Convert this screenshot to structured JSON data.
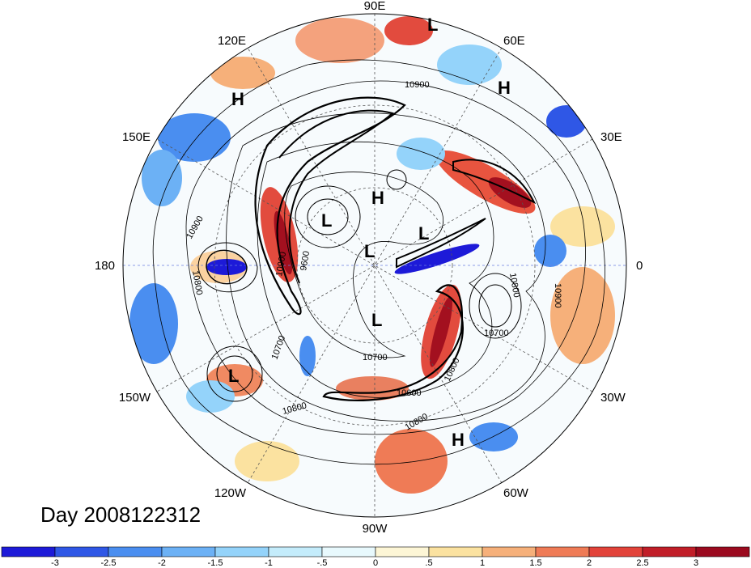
{
  "title": "Day 2008122312",
  "longitude_labels": {
    "lon_90e": "90E",
    "lon_60e": "60E",
    "lon_30e": "30E",
    "lon_0": "0",
    "lon_30w": "30W",
    "lon_60w": "60W",
    "lon_90w": "90W",
    "lon_120w": "120W",
    "lon_150w": "150W",
    "lon_180": "180",
    "lon_150e": "150E",
    "lon_120e": "120E"
  },
  "pressure_centers": {
    "c1": "L",
    "c2": "H",
    "c3": "H",
    "c4": "H",
    "c5": "L",
    "c6": "L",
    "c7": "L",
    "c8": "L",
    "c9": "L",
    "c10": "H"
  },
  "contour_labels": {
    "k1": "10900",
    "k2": "10900",
    "k3": "10800",
    "k4": "10700",
    "k5": "10800",
    "k6": "10700",
    "k7": "10600",
    "k8": "10800",
    "k9": "10800",
    "k10": "10900",
    "k11": "10700",
    "k12": "10900",
    "k13": "9600",
    "k14": "10800"
  },
  "colorbar": {
    "ticks": [
      "-3",
      "-2.5",
      "-2",
      "-1.5",
      "-1",
      "-.5",
      "0",
      ".5",
      "1",
      "1.5",
      "2",
      "2.5",
      "3"
    ],
    "colors": [
      "#1d1ad8",
      "#2f57e6",
      "#4a8ef0",
      "#6cb1f5",
      "#94d3fa",
      "#c4ecfb",
      "#e8f9fd",
      "#fdf6d6",
      "#fbe2a0",
      "#f6b07a",
      "#ef7b56",
      "#e2433a",
      "#c11e28",
      "#9b0a1f"
    ]
  }
}
